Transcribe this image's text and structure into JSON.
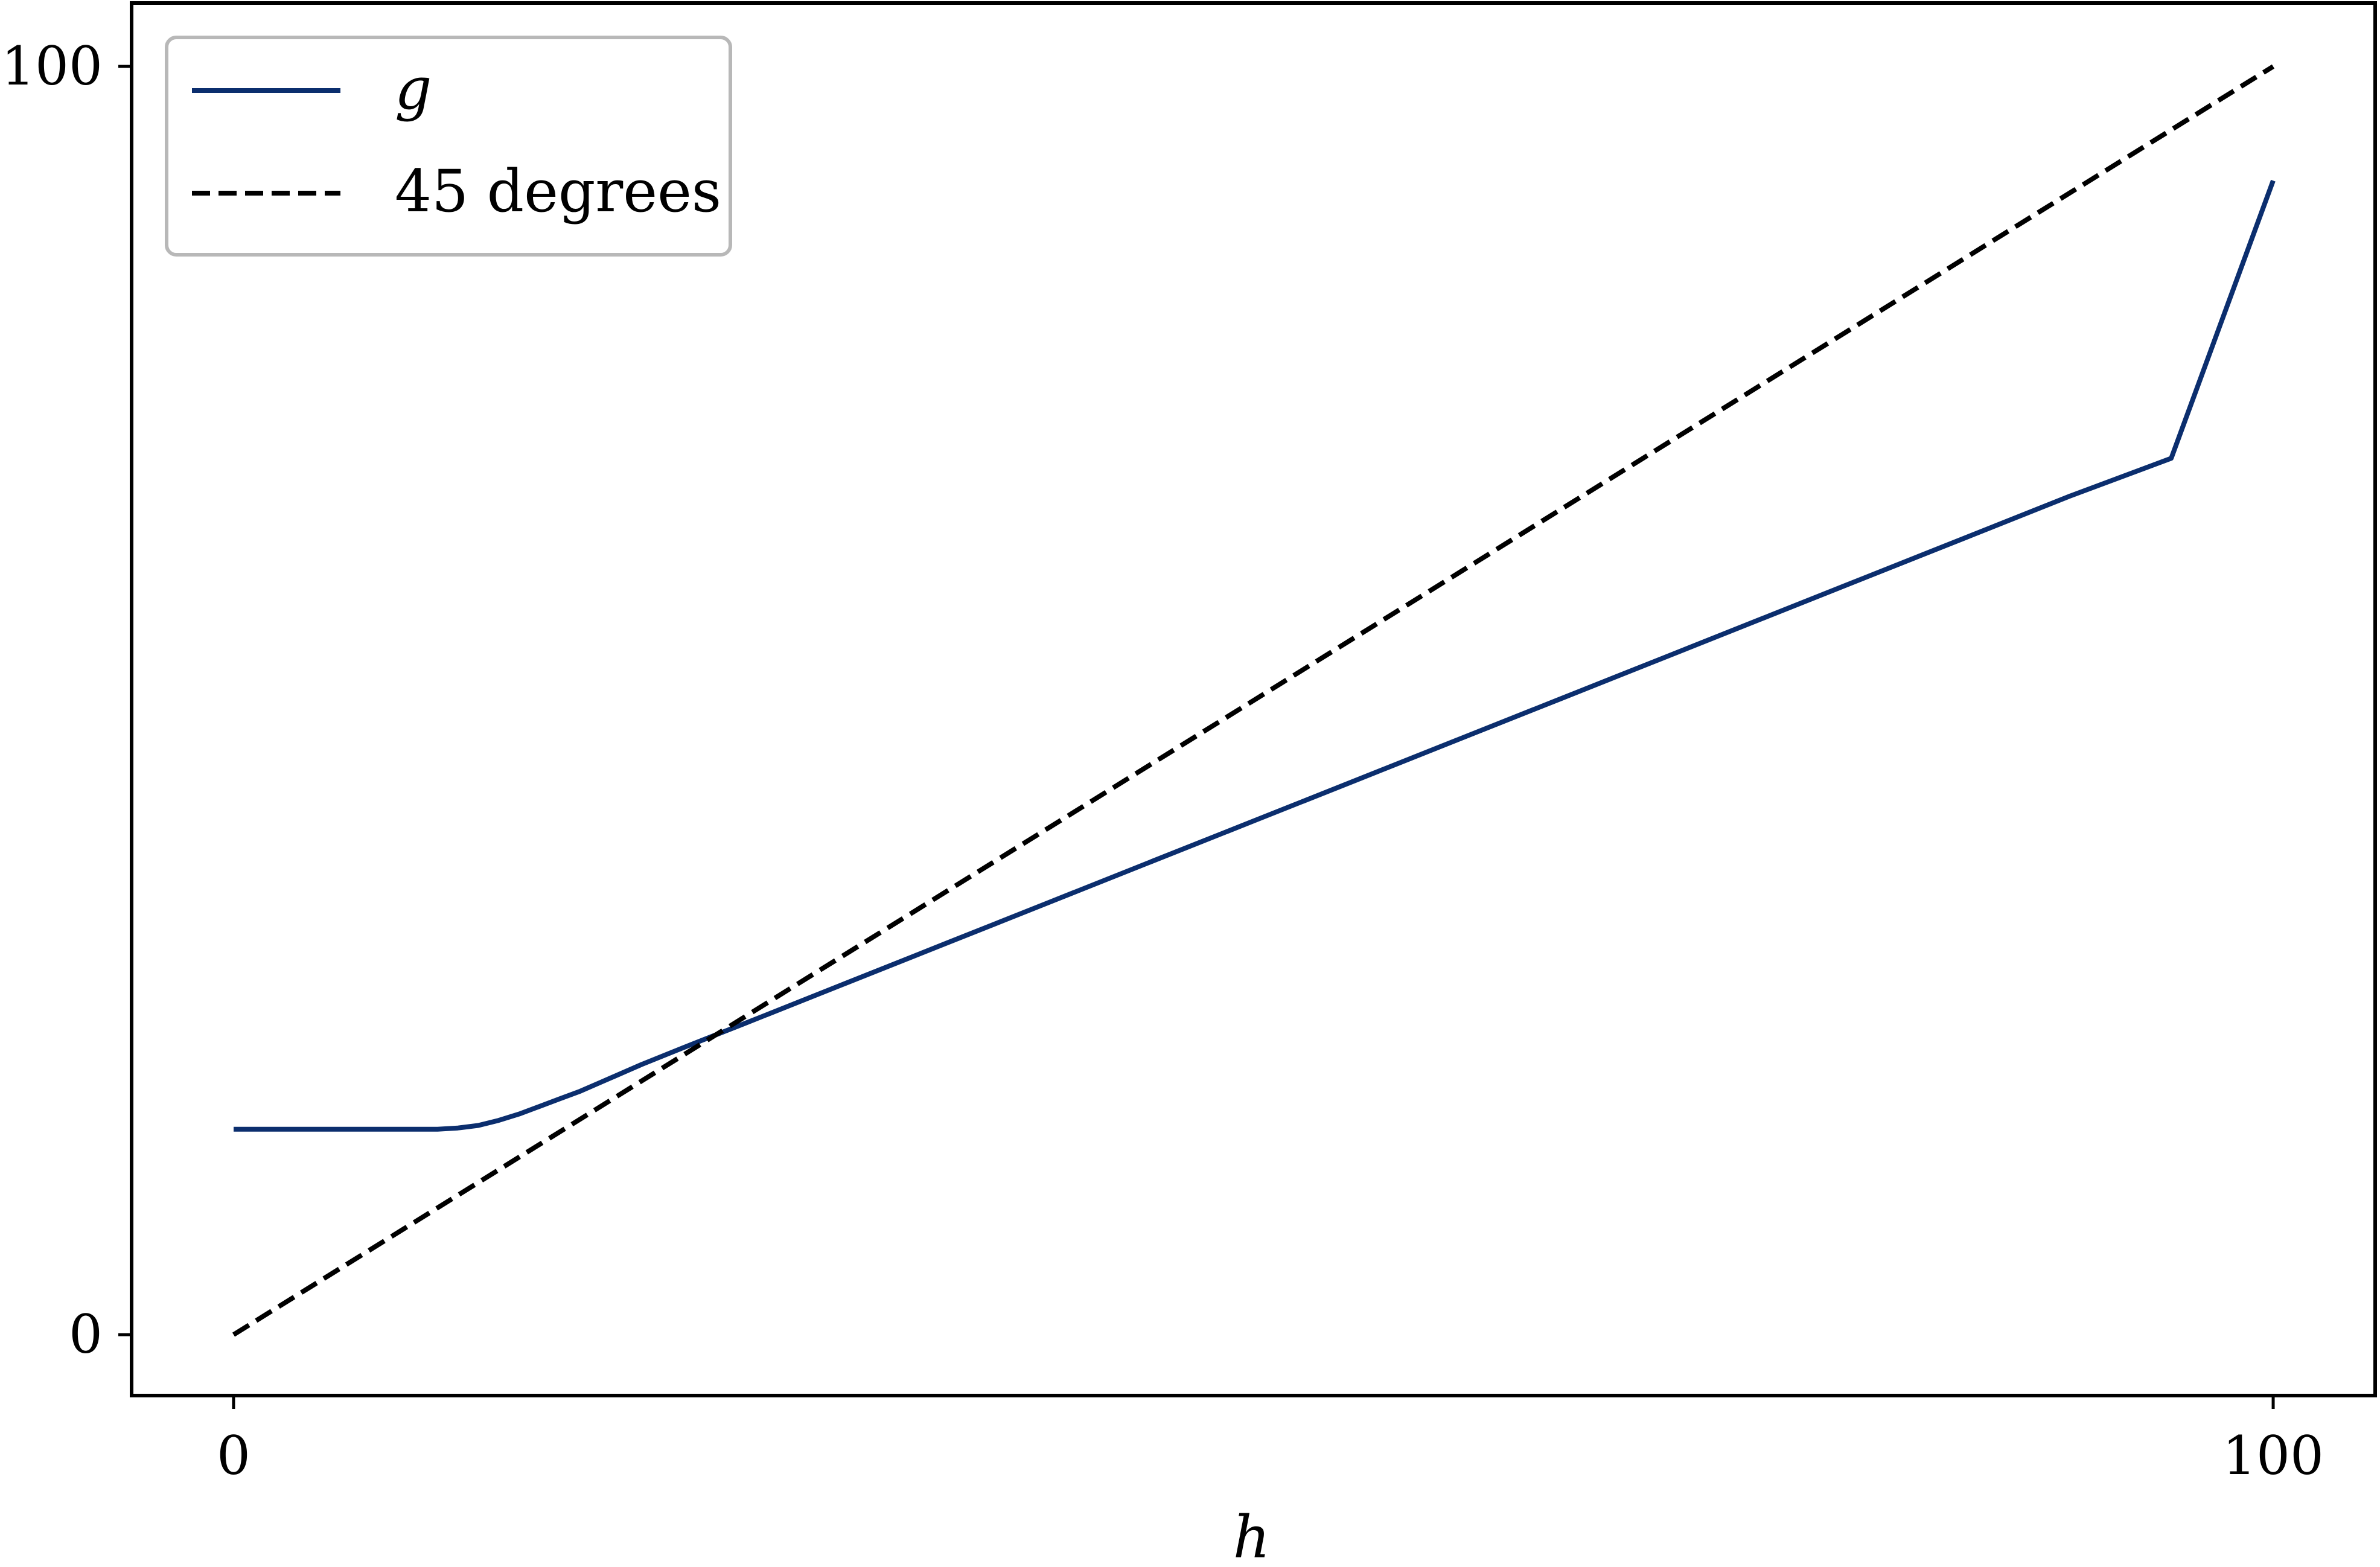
{
  "chart_data": {
    "type": "line",
    "xlabel": "h",
    "ylabel": "",
    "xlim": [
      -5,
      105
    ],
    "ylim": [
      -4.8,
      105
    ],
    "x_ticks": [
      0,
      100
    ],
    "x_tick_labels": [
      "0",
      "100"
    ],
    "y_ticks": [
      0,
      100
    ],
    "y_tick_labels": [
      "0",
      "100"
    ],
    "grid": false,
    "legend_position": "top-left",
    "series": [
      {
        "name": "g",
        "color": "#0b2e6e",
        "style": "solid",
        "x": [
          0,
          2,
          4,
          6,
          8,
          10,
          11,
          12,
          13,
          14,
          15,
          16,
          17,
          18,
          19,
          20,
          22,
          25,
          30,
          35,
          40,
          45,
          50,
          55,
          60,
          65,
          70,
          75,
          80,
          85,
          90,
          95,
          100
        ],
        "y": [
          16.2,
          16.2,
          16.2,
          16.2,
          16.2,
          16.2,
          16.3,
          16.5,
          16.9,
          17.4,
          18.0,
          18.6,
          19.2,
          19.9,
          20.6,
          21.3,
          22.6,
          24.5,
          27.7,
          30.9,
          34.1,
          37.3,
          40.5,
          43.7,
          46.9,
          50.1,
          53.3,
          56.5,
          59.7,
          62.9,
          66.1,
          69.1,
          91.0
        ]
      },
      {
        "name": "45 degrees",
        "color": "#000000",
        "style": "dashed",
        "x": [
          0,
          100
        ],
        "y": [
          0,
          100
        ]
      }
    ]
  }
}
